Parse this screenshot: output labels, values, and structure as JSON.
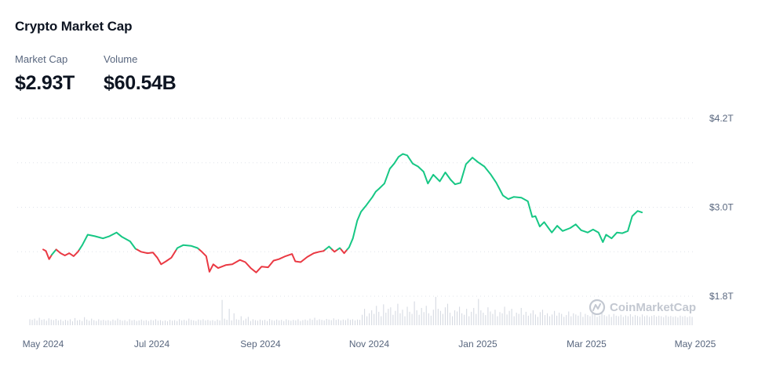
{
  "header": {
    "title": "Crypto Market Cap",
    "market_cap_label": "Market Cap",
    "market_cap_value": "$2.93T",
    "volume_label": "Volume",
    "volume_value": "$60.54B"
  },
  "watermark": {
    "text": "CoinMarketCap"
  },
  "colors": {
    "up": "#16c784",
    "down": "#ea3943",
    "grid": "#dfe3ea",
    "text": "#58667e",
    "volume": "#d6dae2"
  },
  "chart_data": {
    "type": "line",
    "title": "Crypto Market Cap",
    "xlabel": "",
    "ylabel": "",
    "y_unit": "trillion USD",
    "ylim": [
      1.8,
      4.2
    ],
    "y_ticks": [
      {
        "value": 4.2,
        "label": "$4.2T"
      },
      {
        "value": 3.0,
        "label": "$3.0T"
      },
      {
        "value": 1.8,
        "label": "$1.8T"
      }
    ],
    "x_ticks": [
      "May 2024",
      "Jul 2024",
      "Sep 2024",
      "Nov 2024",
      "Jan 2025",
      "Mar 2025",
      "May 2025"
    ],
    "baseline": 2.43,
    "color_rule": "green above baseline, red below",
    "x_index_range": [
      0,
      12
    ],
    "series": [
      {
        "name": "Market Cap",
        "points": [
          [
            0.0,
            2.43
          ],
          [
            0.05,
            2.41
          ],
          [
            0.11,
            2.3
          ],
          [
            0.16,
            2.36
          ],
          [
            0.24,
            2.43
          ],
          [
            0.32,
            2.38
          ],
          [
            0.4,
            2.35
          ],
          [
            0.48,
            2.38
          ],
          [
            0.56,
            2.34
          ],
          [
            0.64,
            2.4
          ],
          [
            0.72,
            2.49
          ],
          [
            0.82,
            2.63
          ],
          [
            0.95,
            2.61
          ],
          [
            1.1,
            2.58
          ],
          [
            1.22,
            2.61
          ],
          [
            1.35,
            2.66
          ],
          [
            1.45,
            2.6
          ],
          [
            1.6,
            2.54
          ],
          [
            1.7,
            2.44
          ],
          [
            1.8,
            2.4
          ],
          [
            1.92,
            2.38
          ],
          [
            2.02,
            2.39
          ],
          [
            2.1,
            2.32
          ],
          [
            2.17,
            2.23
          ],
          [
            2.26,
            2.27
          ],
          [
            2.36,
            2.32
          ],
          [
            2.47,
            2.45
          ],
          [
            2.58,
            2.49
          ],
          [
            2.72,
            2.48
          ],
          [
            2.84,
            2.45
          ],
          [
            2.92,
            2.4
          ],
          [
            3.0,
            2.34
          ],
          [
            3.06,
            2.13
          ],
          [
            3.13,
            2.23
          ],
          [
            3.22,
            2.18
          ],
          [
            3.36,
            2.22
          ],
          [
            3.48,
            2.23
          ],
          [
            3.62,
            2.29
          ],
          [
            3.72,
            2.26
          ],
          [
            3.82,
            2.18
          ],
          [
            3.92,
            2.12
          ],
          [
            4.02,
            2.2
          ],
          [
            4.14,
            2.19
          ],
          [
            4.24,
            2.28
          ],
          [
            4.34,
            2.3
          ],
          [
            4.46,
            2.34
          ],
          [
            4.58,
            2.37
          ],
          [
            4.64,
            2.27
          ],
          [
            4.74,
            2.26
          ],
          [
            4.86,
            2.33
          ],
          [
            4.98,
            2.38
          ],
          [
            5.08,
            2.4
          ],
          [
            5.16,
            2.41
          ],
          [
            5.26,
            2.47
          ],
          [
            5.36,
            2.4
          ],
          [
            5.46,
            2.45
          ],
          [
            5.54,
            2.38
          ],
          [
            5.63,
            2.46
          ],
          [
            5.7,
            2.58
          ],
          [
            5.78,
            2.82
          ],
          [
            5.85,
            2.94
          ],
          [
            5.95,
            3.03
          ],
          [
            6.06,
            3.14
          ],
          [
            6.12,
            3.21
          ],
          [
            6.18,
            3.25
          ],
          [
            6.28,
            3.32
          ],
          [
            6.38,
            3.52
          ],
          [
            6.46,
            3.59
          ],
          [
            6.54,
            3.68
          ],
          [
            6.62,
            3.72
          ],
          [
            6.7,
            3.7
          ],
          [
            6.8,
            3.59
          ],
          [
            6.9,
            3.55
          ],
          [
            7.0,
            3.48
          ],
          [
            7.08,
            3.32
          ],
          [
            7.18,
            3.44
          ],
          [
            7.3,
            3.35
          ],
          [
            7.4,
            3.47
          ],
          [
            7.5,
            3.37
          ],
          [
            7.58,
            3.31
          ],
          [
            7.68,
            3.33
          ],
          [
            7.78,
            3.58
          ],
          [
            7.9,
            3.67
          ],
          [
            8.0,
            3.61
          ],
          [
            8.12,
            3.55
          ],
          [
            8.24,
            3.44
          ],
          [
            8.34,
            3.33
          ],
          [
            8.46,
            3.16
          ],
          [
            8.56,
            3.11
          ],
          [
            8.66,
            3.14
          ],
          [
            8.8,
            3.13
          ],
          [
            8.92,
            3.08
          ],
          [
            9.0,
            2.87
          ],
          [
            9.06,
            2.88
          ],
          [
            9.14,
            2.74
          ],
          [
            9.22,
            2.8
          ],
          [
            9.3,
            2.72
          ],
          [
            9.36,
            2.66
          ],
          [
            9.46,
            2.75
          ],
          [
            9.56,
            2.68
          ],
          [
            9.7,
            2.72
          ],
          [
            9.8,
            2.77
          ],
          [
            9.9,
            2.69
          ],
          [
            10.02,
            2.66
          ],
          [
            10.12,
            2.7
          ],
          [
            10.22,
            2.66
          ],
          [
            10.3,
            2.53
          ],
          [
            10.36,
            2.63
          ],
          [
            10.46,
            2.58
          ],
          [
            10.56,
            2.66
          ],
          [
            10.66,
            2.65
          ],
          [
            10.76,
            2.68
          ],
          [
            10.84,
            2.88
          ],
          [
            10.94,
            2.95
          ],
          [
            11.02,
            2.93
          ]
        ]
      },
      {
        "name": "Volume",
        "values": [
          0.2,
          0.18,
          0.22,
          0.16,
          0.25,
          0.18,
          0.2,
          0.15,
          0.23,
          0.19,
          0.17,
          0.21,
          0.16,
          0.19,
          0.14,
          0.18,
          0.15,
          0.2,
          0.13,
          0.24,
          0.16,
          0.18,
          0.14,
          0.27,
          0.19,
          0.15,
          0.22,
          0.17,
          0.14,
          0.2,
          0.16,
          0.18,
          0.15,
          0.17,
          0.14,
          0.19,
          0.16,
          0.22,
          0.18,
          0.15,
          0.17,
          0.13,
          0.2,
          0.16,
          0.18,
          0.14,
          0.16,
          0.19,
          0.15,
          0.17,
          0.14,
          0.18,
          0.16,
          0.2,
          0.15,
          0.17,
          0.14,
          0.16,
          0.13,
          0.18,
          0.15,
          0.17,
          0.14,
          0.2,
          0.16,
          0.18,
          0.15,
          0.22,
          0.18,
          0.16,
          0.14,
          0.19,
          0.17,
          0.2,
          0.16,
          0.18,
          0.15,
          0.17,
          0.14,
          0.19,
          0.16,
          0.85,
          0.22,
          0.18,
          0.55,
          0.16,
          0.4,
          0.2,
          0.18,
          0.3,
          0.16,
          0.22,
          0.28,
          0.14,
          0.2,
          0.17,
          0.15,
          0.19,
          0.16,
          0.18,
          0.14,
          0.21,
          0.17,
          0.15,
          0.19,
          0.16,
          0.18,
          0.14,
          0.2,
          0.17,
          0.15,
          0.18,
          0.16,
          0.2,
          0.14,
          0.17,
          0.19,
          0.16,
          0.22,
          0.18,
          0.25,
          0.17,
          0.2,
          0.18,
          0.16,
          0.21,
          0.19,
          0.17,
          0.23,
          0.18,
          0.2,
          0.16,
          0.19,
          0.17,
          0.22,
          0.18,
          0.2,
          0.16,
          0.19,
          0.18,
          0.35,
          0.55,
          0.3,
          0.4,
          0.5,
          0.38,
          0.65,
          0.45,
          0.3,
          0.7,
          0.42,
          0.55,
          0.6,
          0.35,
          0.48,
          0.72,
          0.4,
          0.52,
          0.3,
          0.62,
          0.45,
          0.38,
          0.8,
          0.5,
          0.35,
          0.58,
          0.44,
          0.65,
          0.4,
          0.32,
          0.52,
          0.95,
          0.55,
          0.48,
          0.38,
          0.6,
          0.72,
          0.42,
          0.3,
          0.5,
          0.46,
          0.62,
          0.4,
          0.35,
          0.55,
          0.3,
          0.45,
          0.58,
          0.38,
          0.88,
          0.5,
          0.42,
          0.34,
          0.6,
          0.46,
          0.38,
          0.52,
          0.3,
          0.44,
          0.4,
          0.62,
          0.36,
          0.48,
          0.55,
          0.3,
          0.42,
          0.38,
          0.58,
          0.35,
          0.45,
          0.32,
          0.4,
          0.5,
          0.36,
          0.28,
          0.44,
          0.52,
          0.34,
          0.4,
          0.3,
          0.36,
          0.48,
          0.32,
          0.42,
          0.38,
          0.28,
          0.34,
          0.46,
          0.3,
          0.4,
          0.36,
          0.32,
          0.44,
          0.28,
          0.38,
          0.34,
          0.3,
          0.42,
          0.36,
          0.28,
          0.32,
          0.4,
          0.34,
          0.3,
          0.36,
          0.28,
          0.38,
          0.32,
          0.3,
          0.35,
          0.28,
          0.33,
          0.3,
          0.37,
          0.29,
          0.34,
          0.31,
          0.28,
          0.36,
          0.3,
          0.33,
          0.28,
          0.31,
          0.34,
          0.29,
          0.32,
          0.3,
          0.27,
          0.33,
          0.29,
          0.31,
          0.28,
          0.3,
          0.26,
          0.32,
          0.29,
          0.31,
          0.27,
          0.3,
          0.28
        ]
      }
    ]
  }
}
